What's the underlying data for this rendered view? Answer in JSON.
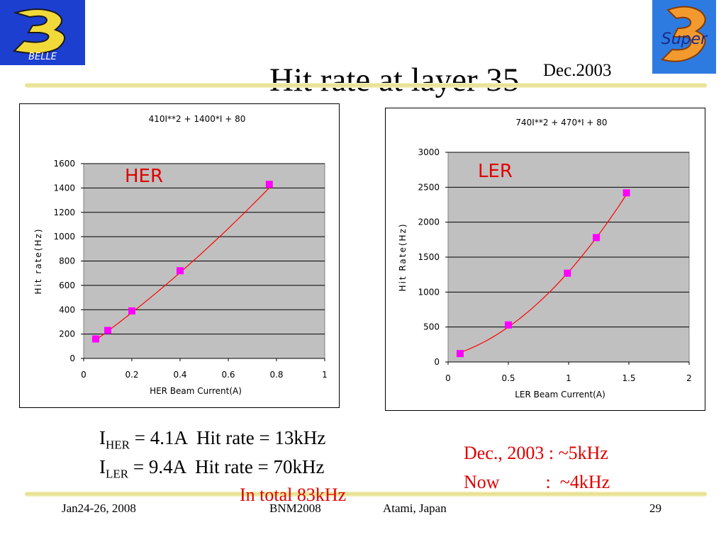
{
  "slide": {
    "title": "Hit rate at layer 35",
    "date": "Dec.2003",
    "logos": {
      "left": "BELLE",
      "right": "Super"
    }
  },
  "chart_data": [
    {
      "type": "scatter",
      "title": "410I**2 + 1400*I + 80",
      "xlabel": "HER Beam Current(A)",
      "ylabel": "Hit rate(Hz)",
      "xlim": [
        0,
        1
      ],
      "ylim": [
        0,
        1600
      ],
      "xticks": [
        "0",
        "0.2",
        "0.4",
        "0.6",
        "0.8",
        "1"
      ],
      "yticks": [
        "0",
        "200",
        "400",
        "600",
        "800",
        "1000",
        "1200",
        "1400",
        "1600"
      ],
      "annotation": "HER",
      "grid": true,
      "series": [
        {
          "x": [
            0.05,
            0.1,
            0.2,
            0.4,
            0.77
          ],
          "y": [
            160,
            230,
            390,
            720,
            1430
          ]
        }
      ],
      "fit": {
        "a": 410,
        "b": 1400,
        "c": 80,
        "x_range": [
          0.05,
          0.77
        ]
      },
      "colors": {
        "marker": "#ff00ff",
        "line": "#ff0000",
        "plot_bg": "#c0c0c0"
      }
    },
    {
      "type": "scatter",
      "title": "740I**2 + 470*I + 80",
      "xlabel": "LER Beam Current(A)",
      "ylabel": "Hit Rate(Hz)",
      "xlim": [
        0,
        2
      ],
      "ylim": [
        0,
        3000
      ],
      "xticks": [
        "0",
        "0.5",
        "1",
        "1.5",
        "2"
      ],
      "yticks": [
        "0",
        "500",
        "1000",
        "1500",
        "2000",
        "2500",
        "3000"
      ],
      "annotation": "LER",
      "grid": true,
      "series": [
        {
          "x": [
            0.1,
            0.5,
            0.99,
            1.23,
            1.48
          ],
          "y": [
            120,
            530,
            1270,
            1780,
            2420
          ]
        }
      ],
      "fit": {
        "a": 740,
        "b": 470,
        "c": 80,
        "x_range": [
          0.1,
          1.48
        ]
      },
      "colors": {
        "marker": "#ff00ff",
        "line": "#ff0000",
        "plot_bg": "#c0c0c0"
      }
    }
  ],
  "stats": {
    "her": {
      "prefix": "I",
      "sub": "HER",
      "text": " = 4.1A  Hit rate = 13kHz"
    },
    "ler": {
      "prefix": "I",
      "sub": "LER",
      "text": " = 9.4A  Hit rate = 70kHz"
    },
    "total": "In total 83kHz"
  },
  "notes": {
    "line1": "Dec., 2003 : ~5kHz",
    "line2": "Now          :  ~4kHz"
  },
  "footer": {
    "date": "Jan24-26, 2008",
    "conference": "BNM2008",
    "location": "Atami, Japan",
    "page": "29"
  }
}
